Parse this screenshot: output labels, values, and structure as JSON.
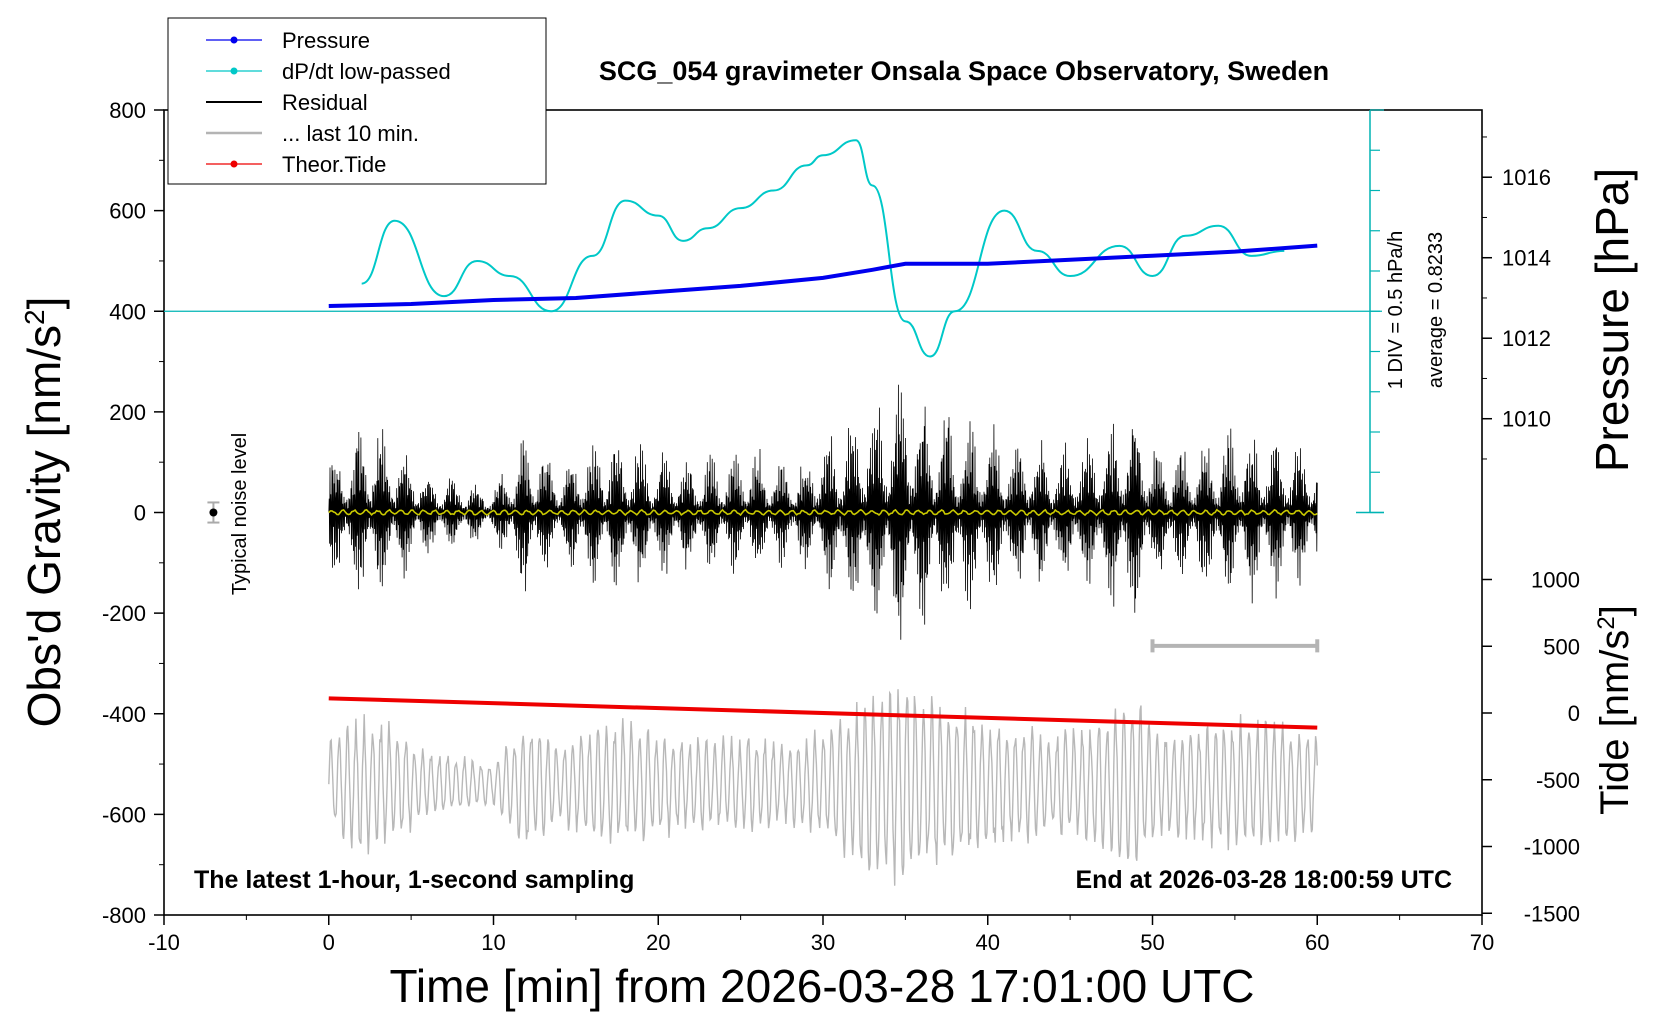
{
  "chart_data": {
    "type": "line",
    "title": "SCG_054 gravimeter Onsala Space Observatory, Sweden",
    "xlabel": "Time [min] from 2026-03-28 17:01:00 UTC",
    "ylabel_left": "Obs'd Gravity [nm/s",
    "ylabel_left_sup": "2",
    "ylabel_left_close": "]",
    "ylabel_right_top": "Pressure [hPa]",
    "ylabel_right_bottom": "Tide [nm/s",
    "ylabel_right_bottom_sup": "2",
    "ylabel_right_bottom_close": "]",
    "xlim": [
      -10,
      70
    ],
    "ylim_left": [
      -800,
      800
    ],
    "x_ticks": [
      "-10",
      "0",
      "10",
      "20",
      "30",
      "40",
      "50",
      "60",
      "70"
    ],
    "y_ticks_left": [
      "800",
      "600",
      "400",
      "200",
      "0",
      "-200",
      "-400",
      "-600",
      "-800"
    ],
    "pressure_axis": {
      "ticks": [
        "1016",
        "1014",
        "1012",
        "1010"
      ],
      "values": [
        1016,
        1014,
        1012,
        1010
      ]
    },
    "tide_axis": {
      "ticks": [
        "1000",
        "500",
        "0",
        "-500",
        "-1000",
        "-1500"
      ],
      "values": [
        1000,
        500,
        0,
        -500,
        -1000,
        -1500
      ]
    },
    "dpdt_scale": {
      "label": "1 DIV = 0.5 hPa/h",
      "average": "average = 0.8233"
    },
    "noise_label": "Typical noise level",
    "bottom_left_note": "The latest 1-hour, 1-second sampling",
    "bottom_right_note": "End at 2026-03-28 18:00:59 UTC",
    "legend": [
      {
        "name": "Pressure",
        "color": "#0000ee",
        "marker": true
      },
      {
        "name": "dP/dt low-passed",
        "color": "#00c8c8",
        "marker": true
      },
      {
        "name": "Residual",
        "color": "#000000",
        "marker": false
      },
      {
        "name": "... last 10 min.",
        "color": "#b4b4b4",
        "marker": false
      },
      {
        "name": "Theor.Tide",
        "color": "#ee0000",
        "marker": true
      }
    ],
    "series": [
      {
        "name": "Pressure",
        "axis": "pressure_hPa",
        "x": [
          0,
          5,
          10,
          15,
          20,
          25,
          30,
          33,
          35,
          37,
          40,
          45,
          50,
          55,
          60
        ],
        "values": [
          1012.8,
          1012.85,
          1012.95,
          1013.0,
          1013.15,
          1013.3,
          1013.5,
          1013.7,
          1013.85,
          1013.85,
          1013.85,
          1013.95,
          1014.05,
          1014.15,
          1014.3
        ]
      },
      {
        "name": "dP/dt low-passed",
        "axis": "gravity_equivalent",
        "x": [
          2,
          4,
          7,
          9,
          11,
          13.5,
          16,
          18,
          20,
          21.5,
          23,
          25,
          27,
          29,
          30,
          32,
          33,
          35,
          36.5,
          38,
          41,
          43,
          45,
          48,
          50,
          52,
          54,
          56,
          58
        ],
        "values": [
          455,
          580,
          430,
          500,
          470,
          400,
          510,
          620,
          590,
          540,
          565,
          605,
          640,
          690,
          710,
          740,
          650,
          380,
          310,
          400,
          600,
          520,
          470,
          530,
          470,
          550,
          570,
          510,
          520
        ]
      },
      {
        "name": "Theor.Tide",
        "axis": "tide_nm_s2",
        "x": [
          0,
          60
        ],
        "values": [
          110,
          -110
        ]
      }
    ],
    "residual_envelope": {
      "x": [
        0,
        2,
        4,
        6,
        8,
        10,
        12,
        14,
        16,
        18,
        20,
        22,
        24,
        26,
        28,
        30,
        32,
        34,
        35,
        36,
        38,
        40,
        42,
        44,
        46,
        48,
        49,
        50,
        52,
        54,
        56,
        58,
        60
      ],
      "values": [
        120,
        200,
        170,
        90,
        80,
        60,
        190,
        110,
        170,
        180,
        150,
        130,
        130,
        140,
        110,
        160,
        230,
        270,
        320,
        250,
        230,
        190,
        170,
        150,
        160,
        230,
        250,
        160,
        150,
        180,
        190,
        170,
        140
      ]
    }
  }
}
